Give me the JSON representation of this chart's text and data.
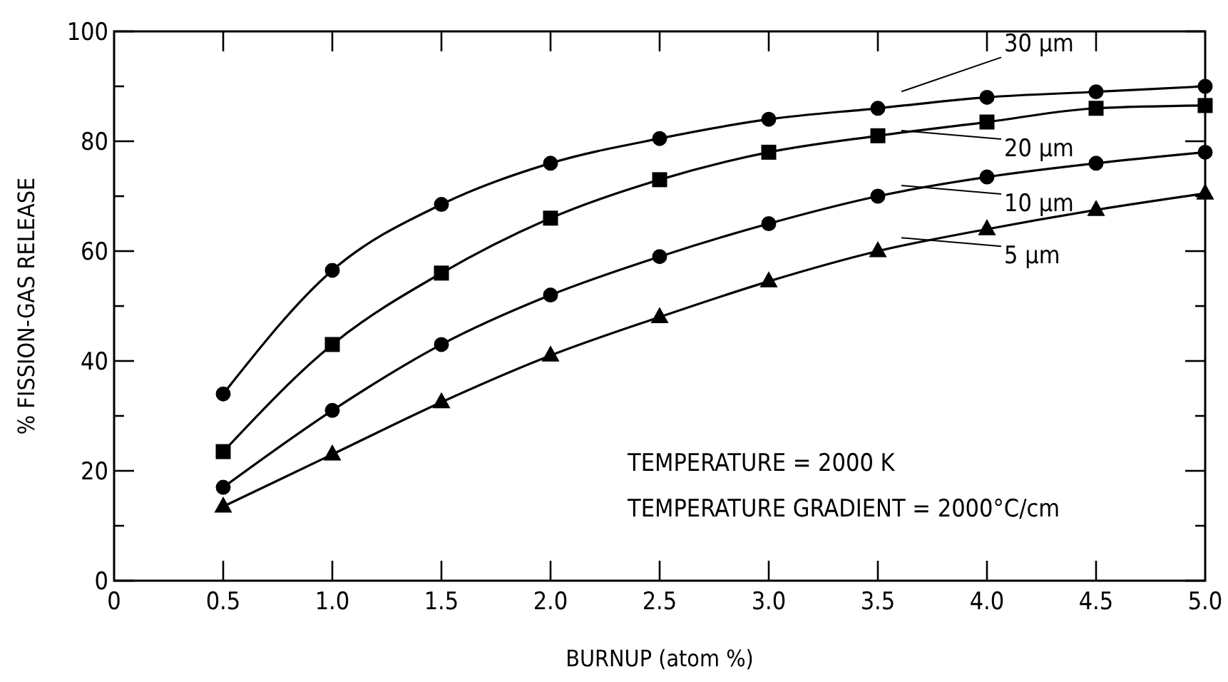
{
  "chart_data": {
    "type": "line",
    "xlabel": "BURNUP (atom %)",
    "ylabel": "% FISSION-GAS RELEASE",
    "x": [
      0.5,
      1.0,
      1.5,
      2.0,
      2.5,
      3.0,
      3.5,
      4.0,
      4.5,
      5.0
    ],
    "series": [
      {
        "name": "30 μm",
        "color": "#000000",
        "marker": "circle",
        "values": [
          34,
          56.5,
          68.5,
          76,
          80.5,
          84,
          86,
          88,
          89,
          90
        ]
      },
      {
        "name": "20 μm",
        "color": "#000000",
        "marker": "square",
        "values": [
          23.5,
          43,
          56,
          66,
          73,
          78,
          81,
          83.5,
          86,
          86.5
        ]
      },
      {
        "name": "10 μm",
        "color": "#000000",
        "marker": "circle",
        "values": [
          17,
          31,
          43,
          52,
          59,
          65,
          70,
          73.5,
          76,
          78
        ]
      },
      {
        "name": "5 μm",
        "color": "#000000",
        "marker": "triangle",
        "values": [
          13.5,
          23,
          32.5,
          41,
          48,
          54.5,
          60,
          64,
          67.5,
          70.5
        ]
      }
    ],
    "xlim": [
      0,
      5
    ],
    "ylim": [
      0,
      100
    ],
    "xticks": [
      0,
      {
        "value": 0.5,
        "label": "0.5"
      },
      {
        "value": 1,
        "label": "1.0"
      },
      {
        "value": 1.5,
        "label": "1.5"
      },
      {
        "value": 2,
        "label": "2.0"
      },
      {
        "value": 2.5,
        "label": "2.5"
      },
      {
        "value": 3,
        "label": "3.0"
      },
      {
        "value": 3.5,
        "label": "3.5"
      },
      {
        "value": 4,
        "label": "4.0"
      },
      {
        "value": 4.5,
        "label": "4.5"
      },
      {
        "value": 5,
        "label": "5.0"
      }
    ],
    "yticks": [
      0,
      {
        "value": 10,
        "label": null
      },
      20,
      {
        "value": 30,
        "label": null
      },
      40,
      {
        "value": 50,
        "label": null
      },
      60,
      {
        "value": 70,
        "label": null
      },
      80,
      {
        "value": 90,
        "label": null
      },
      100
    ],
    "grid": false,
    "legend": "top right",
    "line_style": "solid",
    "annotations": [
      "TEMPERATURE = 2000 K",
      "TEMPERATURE GRADIENT = 2000°C/cm"
    ]
  }
}
